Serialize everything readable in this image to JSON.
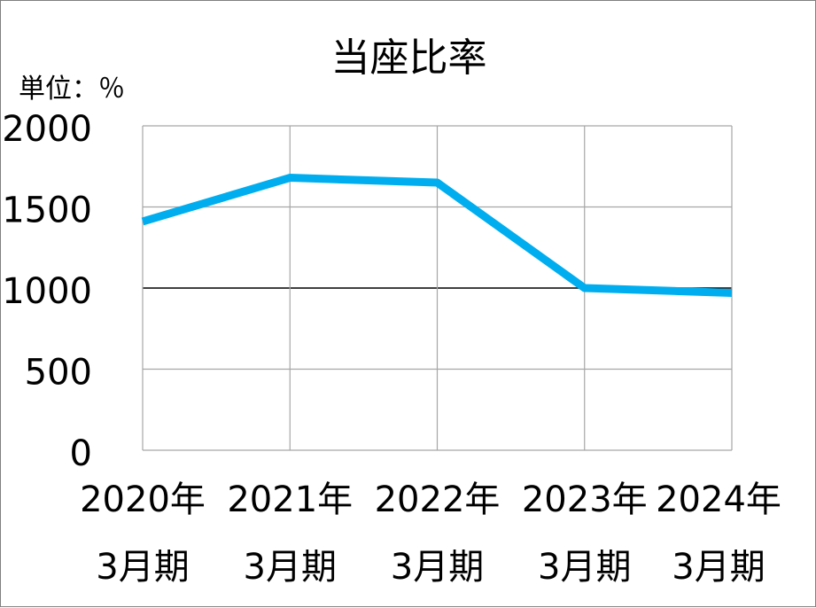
{
  "chart_data": {
    "type": "line",
    "title": "当座比率",
    "unit_label": "単位：％",
    "categories": [
      [
        "2020年",
        "3月期"
      ],
      [
        "2021年",
        "3月期"
      ],
      [
        "2022年",
        "3月期"
      ],
      [
        "2023年",
        "3月期"
      ],
      [
        "2024年",
        "3月期"
      ]
    ],
    "series": [
      {
        "values": [
          1410,
          1680,
          1650,
          1000,
          970
        ]
      }
    ],
    "yticks": [
      "0",
      "500",
      "1000",
      "1500",
      "2000"
    ],
    "ylim": [
      0,
      2000
    ],
    "grid": true,
    "colors": {
      "line": "#00AEEF",
      "grid": "#a6a6a6",
      "emphasis_grid": "#000000"
    }
  }
}
